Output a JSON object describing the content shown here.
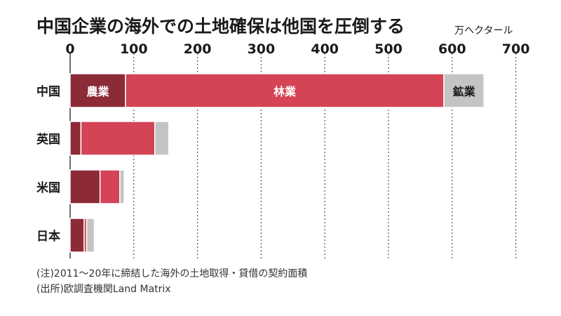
{
  "title": "中国企業の海外での土地確保は他国を圧倒する",
  "unit": "万ヘクタール",
  "notes": [
    "(注)2011～20年に締結した海外の土地取得・貸借の契約面積",
    "(出所)欧調査機関Land Matrix"
  ],
  "colors": {
    "agriculture": "#8c2a38",
    "forestry": "#d44356",
    "mining": "#c4c4c4",
    "grid": "#555555"
  },
  "chart_data": {
    "type": "bar",
    "orientation": "horizontal",
    "stacked": true,
    "categories": [
      "中国",
      "英国",
      "米国",
      "日本"
    ],
    "series": [
      {
        "name": "農業",
        "values": [
          87,
          17,
          47,
          22
        ]
      },
      {
        "name": "林業",
        "values": [
          500,
          116,
          31,
          4
        ]
      },
      {
        "name": "鉱業",
        "values": [
          63,
          22,
          7,
          12
        ]
      }
    ],
    "x_ticks": [
      0,
      100,
      200,
      300,
      400,
      500,
      600,
      700
    ],
    "xlim": [
      0,
      700
    ],
    "grid": true,
    "in_bar_labels": {
      "category": "中国",
      "labels": [
        "農業",
        "林業",
        "鉱業"
      ]
    }
  }
}
